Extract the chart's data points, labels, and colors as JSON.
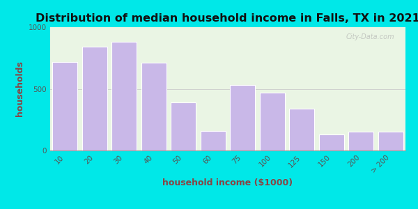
{
  "title": "Distribution of median household income in Falls, TX in 2021",
  "xlabel": "household income ($1000)",
  "ylabel": "households",
  "categories": [
    "10",
    "20",
    "30",
    "40",
    "50",
    "60",
    "75",
    "100",
    "125",
    "150",
    "200",
    "> 200"
  ],
  "values": [
    720,
    840,
    880,
    710,
    390,
    160,
    530,
    470,
    340,
    130,
    150,
    150
  ],
  "bar_color": "#c9b8e8",
  "bar_edge_color": "#ffffff",
  "ylim": [
    0,
    1000
  ],
  "yticks": [
    0,
    500,
    1000
  ],
  "background_outer": "#00e8e8",
  "background_plot": "#eaf5e4",
  "title_fontsize": 11.5,
  "axis_label_fontsize": 9,
  "tick_fontsize": 7.5,
  "watermark": "City-Data.com",
  "figsize": [
    6.0,
    3.0
  ],
  "dpi": 100
}
